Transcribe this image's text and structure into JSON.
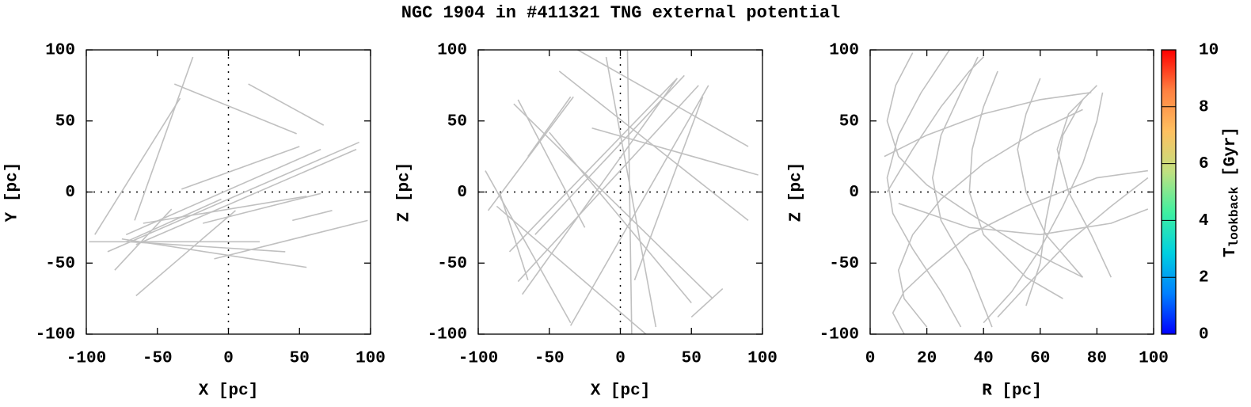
{
  "title": "NGC 1904 in #411321 TNG external potential",
  "chart_data": [
    {
      "type": "line",
      "xlabel": "X [pc]",
      "ylabel": "Y [pc]",
      "xlim": [
        -100,
        100
      ],
      "ylim": [
        -100,
        100
      ],
      "xticks": [
        -100,
        -50,
        0,
        50,
        100
      ],
      "yticks": [
        -100,
        -50,
        0,
        50,
        100
      ],
      "zero_lines": [
        "x",
        "y"
      ],
      "series": [
        {
          "color": "#c0c0c0",
          "x": [
            -94,
            -34
          ],
          "values": [
            -30,
            66
          ]
        },
        {
          "color": "#c0c0c0",
          "x": [
            -66,
            -25
          ],
          "values": [
            -20,
            95
          ]
        },
        {
          "color": "#c0c0c0",
          "x": [
            -38,
            48
          ],
          "values": [
            76,
            41
          ]
        },
        {
          "color": "#c0c0c0",
          "x": [
            14,
            67
          ],
          "values": [
            76,
            47
          ]
        },
        {
          "color": "#c0c0c0",
          "x": [
            -33,
            50
          ],
          "values": [
            2,
            32
          ]
        },
        {
          "color": "#c0c0c0",
          "x": [
            -85,
            92
          ],
          "values": [
            -42,
            35
          ]
        },
        {
          "color": "#c0c0c0",
          "x": [
            -72,
            65
          ],
          "values": [
            -30,
            30
          ]
        },
        {
          "color": "#c0c0c0",
          "x": [
            -65,
            90
          ],
          "values": [
            -37,
            30
          ]
        },
        {
          "color": "#c0c0c0",
          "x": [
            -80,
            -40
          ],
          "values": [
            -55,
            -12
          ]
        },
        {
          "color": "#c0c0c0",
          "x": [
            -98,
            22
          ],
          "values": [
            -35,
            -35
          ]
        },
        {
          "color": "#c0c0c0",
          "x": [
            -70,
            40
          ],
          "values": [
            -35,
            -42
          ]
        },
        {
          "color": "#c0c0c0",
          "x": [
            -65,
            5
          ],
          "values": [
            -73,
            -13
          ]
        },
        {
          "color": "#c0c0c0",
          "x": [
            -75,
            55
          ],
          "values": [
            -33,
            -53
          ]
        },
        {
          "color": "#c0c0c0",
          "x": [
            -10,
            98
          ],
          "values": [
            -47,
            -20
          ]
        },
        {
          "color": "#c0c0c0",
          "x": [
            -18,
            65
          ],
          "values": [
            -22,
            -1
          ]
        },
        {
          "color": "#c0c0c0",
          "x": [
            -60,
            55
          ],
          "values": [
            -22,
            -3
          ]
        },
        {
          "color": "#c0c0c0",
          "x": [
            45,
            73
          ],
          "values": [
            -20,
            -13
          ]
        },
        {
          "color": "#c0c0c0",
          "x": [
            -72,
            -5
          ],
          "values": [
            -35,
            -5
          ]
        }
      ]
    },
    {
      "type": "line",
      "xlabel": "X [pc]",
      "ylabel": "Z [pc]",
      "xlim": [
        -100,
        100
      ],
      "ylim": [
        -100,
        100
      ],
      "xticks": [
        -100,
        -50,
        0,
        50,
        100
      ],
      "yticks": [
        -100,
        -50,
        0,
        50,
        100
      ],
      "zero_lines": [
        "x",
        "y"
      ],
      "series": [
        {
          "color": "#c0c0c0",
          "x": [
            -93,
            -33
          ],
          "values": [
            -13,
            67
          ]
        },
        {
          "color": "#c0c0c0",
          "x": [
            -75,
            65
          ],
          "values": [
            62,
            -75
          ]
        },
        {
          "color": "#c0c0c0",
          "x": [
            -72,
            -25
          ],
          "values": [
            65,
            -25
          ]
        },
        {
          "color": "#c0c0c0",
          "x": [
            -78,
            40
          ],
          "values": [
            -42,
            80
          ]
        },
        {
          "color": "#c0c0c0",
          "x": [
            -43,
            90
          ],
          "values": [
            85,
            -20
          ]
        },
        {
          "color": "#c0c0c0",
          "x": [
            -50,
            50
          ],
          "values": [
            42,
            -78
          ]
        },
        {
          "color": "#c0c0c0",
          "x": [
            -10,
            25
          ],
          "values": [
            95,
            -95
          ]
        },
        {
          "color": "#c0c0c0",
          "x": [
            -95,
            -35
          ],
          "values": [
            15,
            -92
          ]
        },
        {
          "color": "#c0c0c0",
          "x": [
            -85,
            -65
          ],
          "values": [
            0,
            -62
          ]
        },
        {
          "color": "#c0c0c0",
          "x": [
            -87,
            18
          ],
          "values": [
            -10,
            -100
          ]
        },
        {
          "color": "#c0c0c0",
          "x": [
            -69,
            40
          ],
          "values": [
            -72,
            80
          ]
        },
        {
          "color": "#c0c0c0",
          "x": [
            -35,
            62
          ],
          "values": [
            -94,
            75
          ]
        },
        {
          "color": "#c0c0c0",
          "x": [
            -72,
            55
          ],
          "values": [
            -63,
            75
          ]
        },
        {
          "color": "#c0c0c0",
          "x": [
            -20,
            97
          ],
          "values": [
            45,
            12
          ]
        },
        {
          "color": "#c0c0c0",
          "x": [
            -60,
            45
          ],
          "values": [
            -30,
            82
          ]
        },
        {
          "color": "#c0c0c0",
          "x": [
            10,
            58
          ],
          "values": [
            -62,
            67
          ]
        },
        {
          "color": "#c0c0c0",
          "x": [
            -30,
            90
          ],
          "values": [
            100,
            32
          ]
        },
        {
          "color": "#c0c0c0",
          "x": [
            50,
            72
          ],
          "values": [
            -88,
            -68
          ]
        },
        {
          "color": "#c0c0c0",
          "x": [
            -65,
            -35
          ],
          "values": [
            25,
            67
          ]
        },
        {
          "color": "#c0c0c0",
          "x": [
            5,
            8
          ],
          "values": [
            100,
            -100
          ]
        }
      ]
    },
    {
      "type": "line",
      "xlabel": "R [pc]",
      "ylabel": "Z [pc]",
      "xlim": [
        0,
        100
      ],
      "ylim": [
        -100,
        100
      ],
      "xticks": [
        0,
        20,
        40,
        60,
        80,
        100
      ],
      "yticks": [
        -100,
        -50,
        0,
        50,
        100
      ],
      "zero_lines": [
        "y"
      ],
      "series": [
        {
          "color": "#c0c0c0",
          "x": [
            15,
            9,
            6,
            10,
            20,
            35,
            55,
            75
          ],
          "values": [
            98,
            75,
            50,
            25,
            5,
            -15,
            -40,
            -60
          ]
        },
        {
          "color": "#c0c0c0",
          "x": [
            28,
            18,
            10,
            6,
            8,
            15,
            25,
            32
          ],
          "values": [
            100,
            70,
            40,
            10,
            -15,
            -40,
            -70,
            -95
          ]
        },
        {
          "color": "#c0c0c0",
          "x": [
            12,
            8,
            12,
            20,
            35,
            55,
            80,
            98
          ],
          "values": [
            -100,
            -85,
            -70,
            -55,
            -30,
            -10,
            10,
            15
          ]
        },
        {
          "color": "#c0c0c0",
          "x": [
            20,
            12,
            10,
            15,
            25,
            40,
            58,
            75
          ],
          "values": [
            -95,
            -75,
            -55,
            -30,
            -5,
            20,
            42,
            58
          ]
        },
        {
          "color": "#c0c0c0",
          "x": [
            6,
            15,
            25,
            35,
            40
          ],
          "values": [
            0,
            30,
            60,
            85,
            95
          ]
        },
        {
          "color": "#c0c0c0",
          "x": [
            40,
            50,
            60,
            68,
            75,
            80,
            82
          ],
          "values": [
            -92,
            -70,
            -40,
            -10,
            20,
            50,
            70
          ]
        },
        {
          "color": "#c0c0c0",
          "x": [
            55,
            60,
            62,
            65,
            68,
            75
          ],
          "values": [
            -80,
            -50,
            -20,
            10,
            40,
            65
          ]
        },
        {
          "color": "#c0c0c0",
          "x": [
            45,
            58,
            70,
            85,
            98
          ],
          "values": [
            -88,
            -60,
            -35,
            -10,
            10
          ]
        },
        {
          "color": "#c0c0c0",
          "x": [
            5,
            20,
            40,
            60,
            78
          ],
          "values": [
            25,
            40,
            55,
            65,
            70
          ]
        },
        {
          "color": "#c0c0c0",
          "x": [
            45,
            40,
            36,
            35,
            40,
            55,
            68
          ],
          "values": [
            85,
            60,
            30,
            0,
            -30,
            -60,
            -75
          ]
        },
        {
          "color": "#c0c0c0",
          "x": [
            38,
            32,
            25,
            22,
            25,
            35,
            43
          ],
          "values": [
            95,
            70,
            40,
            10,
            -20,
            -55,
            -95
          ]
        },
        {
          "color": "#c0c0c0",
          "x": [
            60,
            55,
            52,
            55,
            62,
            75
          ],
          "values": [
            80,
            55,
            30,
            0,
            -30,
            -60
          ]
        },
        {
          "color": "#c0c0c0",
          "x": [
            80,
            70,
            66,
            70,
            78,
            85
          ],
          "values": [
            75,
            55,
            30,
            0,
            -30,
            -60
          ]
        },
        {
          "color": "#c0c0c0",
          "x": [
            10,
            35,
            60,
            85,
            98
          ],
          "values": [
            -8,
            -25,
            -30,
            -22,
            -12
          ]
        }
      ],
      "colorbar": {
        "label": "T",
        "label_sub": "lookback",
        "label_unit": " [Gyr]",
        "lim": [
          0,
          10
        ],
        "ticks": [
          0,
          2,
          4,
          6,
          8,
          10
        ],
        "colors": [
          "#0000ff",
          "#0080ff",
          "#00d0e0",
          "#40f0a0",
          "#c0e080",
          "#ffc060",
          "#ff8040",
          "#ff0000"
        ]
      }
    }
  ]
}
